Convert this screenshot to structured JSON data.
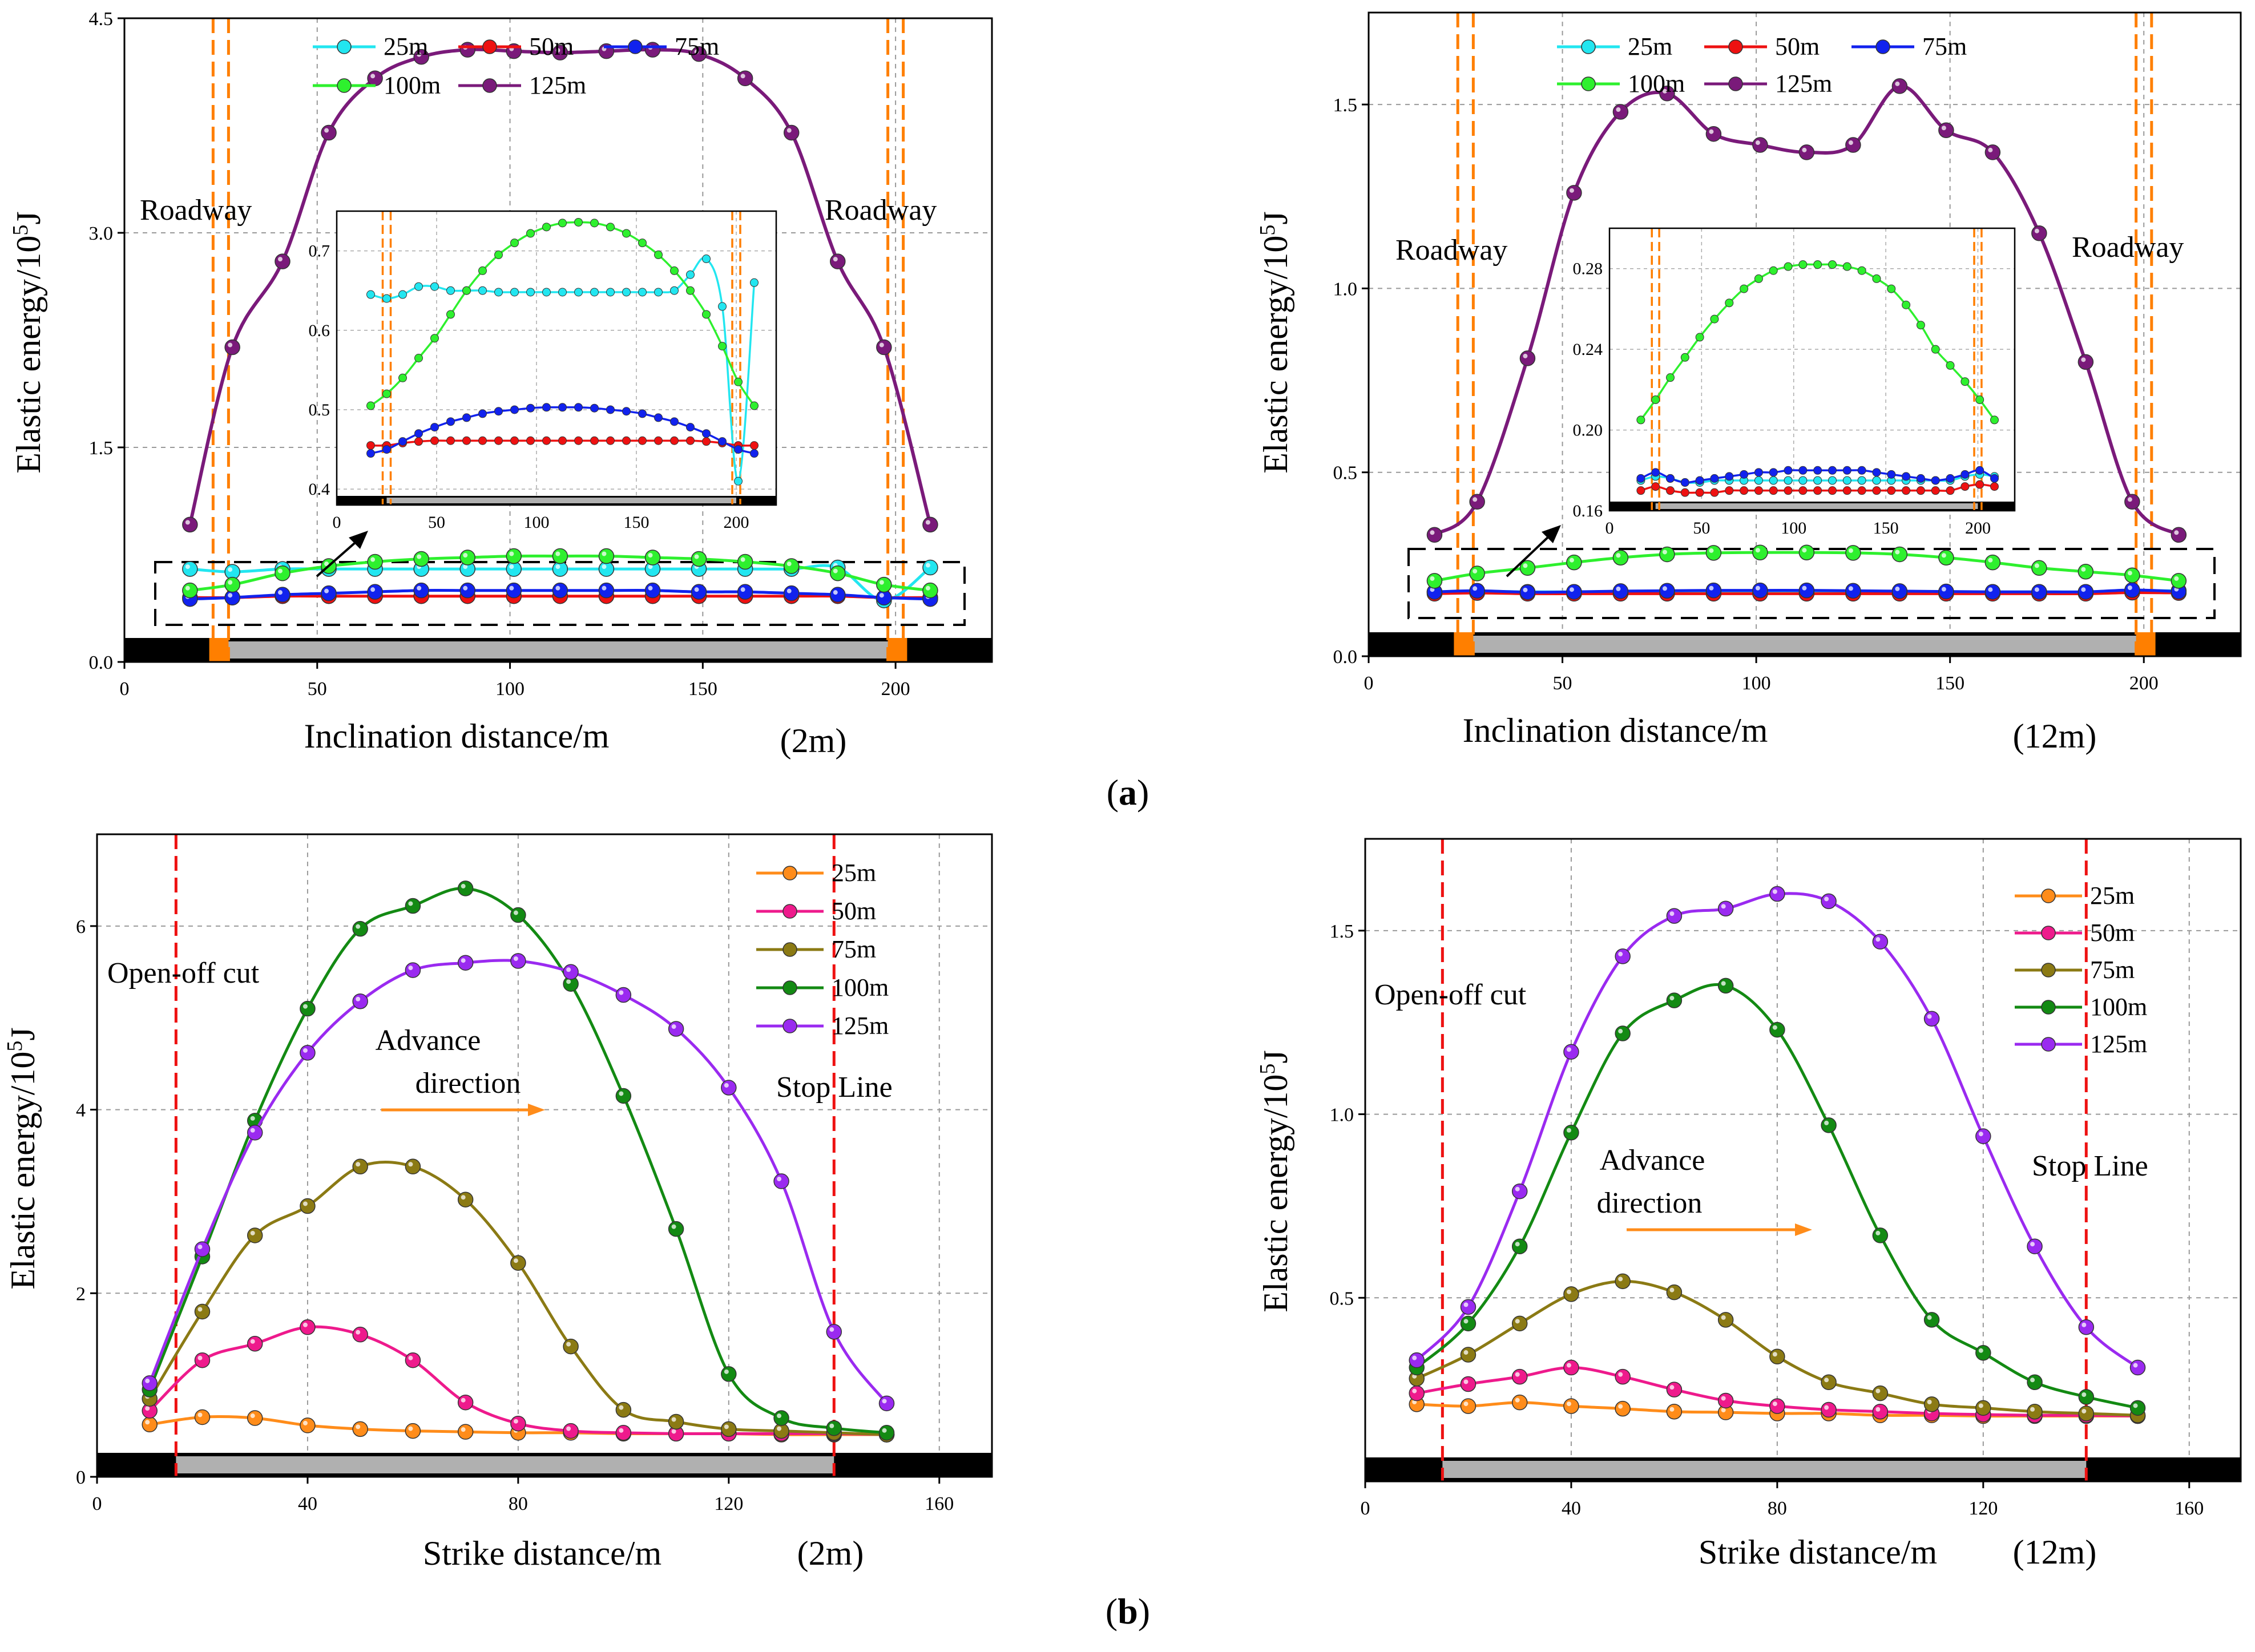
{
  "captions": {
    "a": "(a)",
    "a_letter": "a",
    "b": "(b)",
    "b_letter": "b"
  },
  "colors": {
    "incl_25": "#22e6f0",
    "incl_50": "#ee1111",
    "incl_75": "#1122ee",
    "incl_100": "#2ef02e",
    "incl_125": "#7a1a7a",
    "str_25": "#ff8c1a",
    "str_50": "#ee1a8c",
    "str_75": "#8b7a14",
    "str_100": "#138a13",
    "str_125": "#9a2af0",
    "roadway_line": "#ff7f00",
    "openoff_line": "#ee1111",
    "gob_bar": "#b0b0b0",
    "coal_bar": "#000000"
  },
  "chart_data": [
    {
      "id": "a_left",
      "type": "line",
      "case": "(2m)",
      "xlabel": "Inclination distance/m",
      "ylabel": "Elastic energy/10^5 J",
      "xlim": [
        0,
        225
      ],
      "ylim": [
        0,
        4.5
      ],
      "xticks": [
        0,
        50,
        100,
        150,
        200
      ],
      "yticks": [
        0.0,
        1.5,
        3.0,
        4.5
      ],
      "xtick_labels": [
        "0",
        "50",
        "100",
        "150",
        "200"
      ],
      "ytick_labels": [
        "0.0",
        "1.5",
        "3.0",
        "4.5"
      ],
      "annotations": {
        "roadway_left": "Roadway",
        "roadway_right": "Roadway"
      },
      "roadway_x": [
        23,
        27,
        198,
        202
      ],
      "x": [
        17,
        28,
        41,
        53,
        65,
        77,
        89,
        101,
        113,
        125,
        137,
        149,
        161,
        173,
        185,
        197,
        209
      ],
      "series": [
        {
          "name": "25m",
          "color_key": "incl_25",
          "values": [
            0.65,
            0.63,
            0.65,
            0.65,
            0.65,
            0.65,
            0.65,
            0.65,
            0.65,
            0.65,
            0.65,
            0.65,
            0.65,
            0.65,
            0.66,
            0.43,
            0.66
          ]
        },
        {
          "name": "50m",
          "color_key": "incl_50",
          "values": [
            0.45,
            0.45,
            0.46,
            0.46,
            0.46,
            0.46,
            0.46,
            0.46,
            0.46,
            0.46,
            0.46,
            0.46,
            0.46,
            0.46,
            0.46,
            0.45,
            0.45
          ]
        },
        {
          "name": "75m",
          "color_key": "incl_75",
          "values": [
            0.44,
            0.45,
            0.47,
            0.48,
            0.49,
            0.5,
            0.5,
            0.5,
            0.5,
            0.5,
            0.5,
            0.49,
            0.49,
            0.48,
            0.47,
            0.45,
            0.44
          ]
        },
        {
          "name": "100m",
          "color_key": "incl_100",
          "values": [
            0.5,
            0.54,
            0.62,
            0.67,
            0.7,
            0.72,
            0.73,
            0.74,
            0.74,
            0.74,
            0.73,
            0.72,
            0.7,
            0.67,
            0.62,
            0.54,
            0.5
          ]
        },
        {
          "name": "125m",
          "color_key": "incl_125",
          "values": [
            0.96,
            2.2,
            2.8,
            3.7,
            4.08,
            4.23,
            4.28,
            4.27,
            4.26,
            4.27,
            4.28,
            4.25,
            4.08,
            3.7,
            2.8,
            2.2,
            0.96
          ]
        }
      ],
      "inset": {
        "xlim": [
          0,
          220
        ],
        "ylim": [
          0.38,
          0.75
        ],
        "xticks": [
          0,
          50,
          100,
          150,
          200
        ],
        "yticks": [
          0.4,
          0.5,
          0.6,
          0.7
        ],
        "xtick_labels": [
          "0",
          "50",
          "100",
          "150",
          "200"
        ],
        "ytick_labels": [
          "0.4",
          "0.5",
          "0.6",
          "0.7"
        ],
        "x": [
          17,
          25,
          33,
          41,
          49,
          57,
          65,
          73,
          81,
          89,
          97,
          105,
          113,
          121,
          129,
          137,
          145,
          153,
          161,
          169,
          177,
          185,
          193,
          201,
          209
        ],
        "series": [
          {
            "name": "25m",
            "values": [
              0.645,
              0.64,
              0.645,
              0.655,
              0.655,
              0.65,
              0.65,
              0.65,
              0.648,
              0.648,
              0.648,
              0.648,
              0.648,
              0.648,
              0.648,
              0.648,
              0.648,
              0.648,
              0.648,
              0.65,
              0.67,
              0.69,
              0.63,
              0.41,
              0.66
            ]
          },
          {
            "name": "50m",
            "values": [
              0.455,
              0.455,
              0.458,
              0.46,
              0.461,
              0.461,
              0.461,
              0.461,
              0.461,
              0.461,
              0.461,
              0.461,
              0.461,
              0.461,
              0.461,
              0.461,
              0.461,
              0.461,
              0.461,
              0.461,
              0.461,
              0.46,
              0.458,
              0.455,
              0.455
            ]
          },
          {
            "name": "75m",
            "values": [
              0.445,
              0.45,
              0.46,
              0.47,
              0.478,
              0.485,
              0.49,
              0.495,
              0.498,
              0.5,
              0.502,
              0.503,
              0.503,
              0.503,
              0.502,
              0.5,
              0.498,
              0.495,
              0.49,
              0.485,
              0.478,
              0.47,
              0.46,
              0.45,
              0.445
            ]
          },
          {
            "name": "100m",
            "values": [
              0.505,
              0.52,
              0.54,
              0.565,
              0.59,
              0.62,
              0.65,
              0.675,
              0.695,
              0.71,
              0.722,
              0.73,
              0.735,
              0.736,
              0.735,
              0.73,
              0.722,
              0.71,
              0.695,
              0.675,
              0.65,
              0.62,
              0.58,
              0.535,
              0.505
            ]
          }
        ]
      }
    },
    {
      "id": "a_right",
      "type": "line",
      "case": "(12m)",
      "xlabel": "Inclination distance/m",
      "ylabel": "Elastic energy/10^5 J",
      "xlim": [
        0,
        225
      ],
      "ylim": [
        0,
        1.75
      ],
      "xticks": [
        0,
        50,
        100,
        150,
        200
      ],
      "yticks": [
        0.0,
        0.5,
        1.0,
        1.5
      ],
      "xtick_labels": [
        "0",
        "50",
        "100",
        "150",
        "200"
      ],
      "ytick_labels": [
        "0.0",
        "0.5",
        "1.0",
        "1.5"
      ],
      "annotations": {
        "roadway_left": "Roadway",
        "roadway_right": "Roadway"
      },
      "roadway_x": [
        23,
        27,
        198,
        202
      ],
      "x": [
        17,
        28,
        41,
        53,
        65,
        77,
        89,
        101,
        113,
        125,
        137,
        149,
        161,
        173,
        185,
        197,
        209
      ],
      "series": [
        {
          "name": "25m",
          "color_key": "incl_25",
          "values": [
            0.175,
            0.177,
            0.175,
            0.175,
            0.175,
            0.175,
            0.175,
            0.175,
            0.175,
            0.175,
            0.175,
            0.175,
            0.175,
            0.175,
            0.175,
            0.178,
            0.178
          ]
        },
        {
          "name": "50m",
          "color_key": "incl_50",
          "values": [
            0.17,
            0.172,
            0.17,
            0.17,
            0.17,
            0.17,
            0.17,
            0.17,
            0.17,
            0.17,
            0.17,
            0.17,
            0.17,
            0.17,
            0.17,
            0.173,
            0.172
          ]
        },
        {
          "name": "75m",
          "color_key": "incl_75",
          "values": [
            0.175,
            0.178,
            0.174,
            0.175,
            0.177,
            0.178,
            0.179,
            0.179,
            0.179,
            0.178,
            0.177,
            0.176,
            0.175,
            0.175,
            0.175,
            0.18,
            0.176
          ]
        },
        {
          "name": "100m",
          "color_key": "incl_100",
          "values": [
            0.205,
            0.225,
            0.24,
            0.255,
            0.268,
            0.277,
            0.281,
            0.282,
            0.282,
            0.281,
            0.277,
            0.268,
            0.255,
            0.24,
            0.23,
            0.22,
            0.205
          ]
        },
        {
          "name": "125m",
          "color_key": "incl_125",
          "values": [
            0.33,
            0.42,
            0.81,
            1.26,
            1.48,
            1.53,
            1.42,
            1.39,
            1.37,
            1.39,
            1.55,
            1.43,
            1.37,
            1.15,
            0.8,
            0.42,
            0.33
          ]
        }
      ],
      "inset": {
        "xlim": [
          0,
          220
        ],
        "ylim": [
          0.16,
          0.3
        ],
        "xticks": [
          0,
          50,
          100,
          150,
          200
        ],
        "yticks": [
          0.16,
          0.2,
          0.24,
          0.28
        ],
        "xtick_labels": [
          "0",
          "50",
          "100",
          "150",
          "200"
        ],
        "ytick_labels": [
          "0.16",
          "0.20",
          "0.24",
          "0.28"
        ],
        "x": [
          17,
          25,
          33,
          41,
          49,
          57,
          65,
          73,
          81,
          89,
          97,
          105,
          113,
          121,
          129,
          137,
          145,
          153,
          161,
          169,
          177,
          185,
          193,
          201,
          209
        ],
        "series": [
          {
            "name": "25m",
            "values": [
              0.175,
              0.177,
              0.176,
              0.174,
              0.174,
              0.175,
              0.175,
              0.175,
              0.175,
              0.175,
              0.175,
              0.175,
              0.175,
              0.175,
              0.175,
              0.175,
              0.175,
              0.175,
              0.175,
              0.175,
              0.175,
              0.175,
              0.177,
              0.178,
              0.177
            ]
          },
          {
            "name": "50m",
            "values": [
              0.17,
              0.172,
              0.17,
              0.169,
              0.169,
              0.169,
              0.17,
              0.17,
              0.17,
              0.17,
              0.17,
              0.17,
              0.17,
              0.17,
              0.17,
              0.17,
              0.17,
              0.17,
              0.17,
              0.17,
              0.17,
              0.17,
              0.172,
              0.173,
              0.172
            ]
          },
          {
            "name": "75m",
            "values": [
              0.176,
              0.179,
              0.176,
              0.174,
              0.175,
              0.176,
              0.177,
              0.178,
              0.179,
              0.179,
              0.18,
              0.18,
              0.18,
              0.18,
              0.18,
              0.18,
              0.179,
              0.178,
              0.177,
              0.176,
              0.175,
              0.176,
              0.178,
              0.18,
              0.176
            ]
          },
          {
            "name": "100m",
            "values": [
              0.205,
              0.215,
              0.226,
              0.236,
              0.246,
              0.255,
              0.263,
              0.27,
              0.275,
              0.279,
              0.281,
              0.282,
              0.282,
              0.282,
              0.281,
              0.279,
              0.275,
              0.27,
              0.262,
              0.252,
              0.24,
              0.232,
              0.224,
              0.215,
              0.205
            ]
          }
        ]
      }
    },
    {
      "id": "b_left",
      "type": "line",
      "case": "(2m)",
      "xlabel": "Strike distance/m",
      "ylabel": "Elastic energy/10^5 J",
      "xlim": [
        0,
        170
      ],
      "ylim": [
        0,
        7.0
      ],
      "xticks": [
        0,
        40,
        80,
        120,
        160
      ],
      "yticks": [
        0,
        2,
        4,
        6
      ],
      "xtick_labels": [
        "0",
        "40",
        "80",
        "120",
        "160"
      ],
      "ytick_labels": [
        "0",
        "2",
        "4",
        "6"
      ],
      "annotations": {
        "open_off": "Open-off cut",
        "advance_1": "Advance",
        "advance_2": "direction",
        "stop": "Stop Line"
      },
      "marker_lines_x": [
        15,
        140
      ],
      "x": [
        10,
        20,
        30,
        40,
        50,
        60,
        70,
        80,
        90,
        100,
        110,
        120,
        130,
        140,
        150
      ],
      "series": [
        {
          "name": "25m",
          "color_key": "str_25",
          "values": [
            0.57,
            0.65,
            0.64,
            0.56,
            0.52,
            0.5,
            0.49,
            0.48,
            0.48,
            0.47,
            0.47,
            0.47,
            0.46,
            0.46,
            0.46
          ]
        },
        {
          "name": "50m",
          "color_key": "str_50",
          "values": [
            0.72,
            1.27,
            1.45,
            1.63,
            1.55,
            1.27,
            0.81,
            0.58,
            0.5,
            0.48,
            0.47,
            0.47,
            0.47,
            0.47,
            0.46
          ]
        },
        {
          "name": "75m",
          "color_key": "str_75",
          "values": [
            0.85,
            1.8,
            2.63,
            2.95,
            3.38,
            3.38,
            3.02,
            2.33,
            1.42,
            0.73,
            0.6,
            0.52,
            0.5,
            0.48,
            0.46
          ]
        },
        {
          "name": "100m",
          "color_key": "str_100",
          "values": [
            0.95,
            2.4,
            3.88,
            5.1,
            5.97,
            6.22,
            6.41,
            6.12,
            5.37,
            4.15,
            2.7,
            1.12,
            0.64,
            0.53,
            0.48
          ]
        },
        {
          "name": "125m",
          "color_key": "str_125",
          "values": [
            1.02,
            2.48,
            3.75,
            4.62,
            5.18,
            5.52,
            5.6,
            5.62,
            5.5,
            5.25,
            4.88,
            4.24,
            3.22,
            1.58,
            0.8
          ]
        }
      ]
    },
    {
      "id": "b_right",
      "type": "line",
      "case": "(12m)",
      "xlabel": "Strike distance/m",
      "ylabel": "Elastic energy/10^5 J",
      "xlim": [
        0,
        170
      ],
      "ylim": [
        0,
        1.75
      ],
      "xticks": [
        0,
        40,
        80,
        120,
        160
      ],
      "yticks": [
        0.5,
        1.0,
        1.5
      ],
      "xtick_labels": [
        "0",
        "40",
        "80",
        "120",
        "160"
      ],
      "ytick_labels": [
        "0.5",
        "1.0",
        "1.5"
      ],
      "annotations": {
        "open_off": "Open-off cut",
        "advance_1": "Advance",
        "advance_2": "direction",
        "stop": "Stop Line"
      },
      "marker_lines_x": [
        15,
        140
      ],
      "x": [
        10,
        20,
        30,
        40,
        50,
        60,
        70,
        80,
        90,
        100,
        110,
        120,
        130,
        140,
        150
      ],
      "series": [
        {
          "name": "25m",
          "color_key": "str_25",
          "values": [
            0.21,
            0.205,
            0.215,
            0.205,
            0.198,
            0.19,
            0.188,
            0.185,
            0.185,
            0.18,
            0.18,
            0.178,
            0.178,
            0.178,
            0.178
          ]
        },
        {
          "name": "50m",
          "color_key": "str_50",
          "values": [
            0.24,
            0.265,
            0.285,
            0.31,
            0.285,
            0.25,
            0.22,
            0.205,
            0.195,
            0.19,
            0.185,
            0.182,
            0.18,
            0.18,
            0.178
          ]
        },
        {
          "name": "75m",
          "color_key": "str_75",
          "values": [
            0.28,
            0.345,
            0.43,
            0.51,
            0.545,
            0.515,
            0.44,
            0.34,
            0.27,
            0.24,
            0.21,
            0.2,
            0.19,
            0.185,
            0.18
          ]
        },
        {
          "name": "100m",
          "color_key": "str_100",
          "values": [
            0.31,
            0.43,
            0.64,
            0.95,
            1.22,
            1.31,
            1.35,
            1.23,
            0.97,
            0.67,
            0.44,
            0.35,
            0.27,
            0.23,
            0.2
          ]
        },
        {
          "name": "125m",
          "color_key": "str_125",
          "values": [
            0.33,
            0.475,
            0.79,
            1.17,
            1.43,
            1.54,
            1.56,
            1.6,
            1.58,
            1.47,
            1.26,
            0.94,
            0.64,
            0.42,
            0.31
          ]
        }
      ]
    }
  ]
}
